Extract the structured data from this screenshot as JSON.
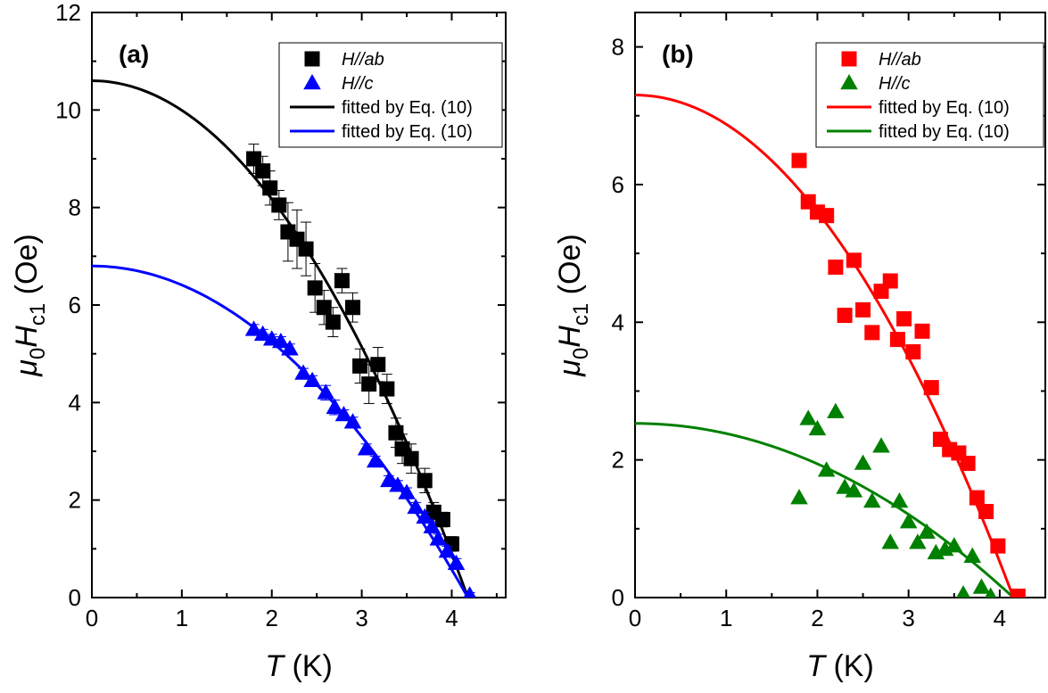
{
  "chart_data": [
    {
      "type": "scatter",
      "panel_label": "(a)",
      "xlabel": {
        "symbol": "T",
        "unit": "(K)"
      },
      "ylabel": {
        "mu": "μ",
        "mu_sub": "0",
        "h": "H",
        "h_sub": "c1",
        "unit": "(Oe)"
      },
      "xlim": [
        0,
        4.6
      ],
      "ylim": [
        0,
        12
      ],
      "xticks": [
        0,
        1,
        2,
        3,
        4
      ],
      "yticks": [
        0,
        2,
        4,
        6,
        8,
        10,
        12
      ],
      "legend_position": "top-right",
      "series": [
        {
          "name": "H//ab",
          "kind": "points",
          "marker": "square",
          "color": "#000000",
          "errorbars": true,
          "x": [
            1.8,
            1.9,
            1.98,
            2.08,
            2.18,
            2.28,
            2.38,
            2.48,
            2.58,
            2.68,
            2.78,
            2.9,
            2.98,
            3.08,
            3.18,
            3.28,
            3.38,
            3.45,
            3.55,
            3.7,
            3.8,
            3.9,
            4.0
          ],
          "y": [
            9.0,
            8.75,
            8.4,
            8.05,
            7.5,
            7.35,
            7.15,
            6.35,
            5.95,
            5.65,
            6.5,
            5.95,
            4.75,
            4.38,
            4.78,
            4.28,
            3.38,
            3.05,
            2.85,
            2.4,
            1.75,
            1.6,
            1.1
          ],
          "err": [
            0.3,
            0.3,
            0.35,
            0.3,
            0.6,
            0.6,
            0.55,
            0.5,
            0.35,
            0.3,
            0.25,
            0.3,
            0.35,
            0.4,
            0.35,
            0.3,
            0.3,
            0.3,
            0.3,
            0.25,
            0.2,
            0.15,
            0.15
          ]
        },
        {
          "name": "H//c",
          "kind": "points",
          "marker": "triangle",
          "color": "#0000ff",
          "errorbars": true,
          "x": [
            1.8,
            1.9,
            2.0,
            2.1,
            2.2,
            2.35,
            2.45,
            2.6,
            2.7,
            2.8,
            2.9,
            3.05,
            3.15,
            3.3,
            3.4,
            3.5,
            3.6,
            3.7,
            3.78,
            3.85,
            3.95,
            4.05,
            4.2
          ],
          "y": [
            5.5,
            5.4,
            5.3,
            5.25,
            5.1,
            4.6,
            4.45,
            4.2,
            3.9,
            3.75,
            3.6,
            3.05,
            2.8,
            2.4,
            2.3,
            2.15,
            1.85,
            1.65,
            1.45,
            1.2,
            0.95,
            0.7,
            0.05
          ],
          "err": [
            0.1,
            0.1,
            0.1,
            0.1,
            0.1,
            0.1,
            0.1,
            0.15,
            0.15,
            0.1,
            0.1,
            0.1,
            0.1,
            0.1,
            0.1,
            0.1,
            0.1,
            0.1,
            0.1,
            0.1,
            0.1,
            0.1,
            0.05
          ]
        },
        {
          "name": "fitted by Eq. (10)",
          "kind": "fit",
          "color": "#000000",
          "model": {
            "y0": 10.6,
            "tc": 4.18
          }
        },
        {
          "name": "fitted by Eq. (10)",
          "kind": "fit",
          "color": "#0000ff",
          "model": {
            "y0": 6.8,
            "tc": 4.18
          }
        }
      ]
    },
    {
      "type": "scatter",
      "panel_label": "(b)",
      "xlabel": {
        "symbol": "T",
        "unit": "(K)"
      },
      "ylabel": {
        "mu": "μ",
        "mu_sub": "0",
        "h": "H",
        "h_sub": "c1",
        "unit": "(Oe)"
      },
      "xlim": [
        0,
        4.5
      ],
      "ylim": [
        0,
        8.5
      ],
      "xticks": [
        0,
        1,
        2,
        3,
        4
      ],
      "yticks": [
        0,
        2,
        4,
        6,
        8
      ],
      "legend_position": "top-right",
      "series": [
        {
          "name": "H//ab",
          "kind": "points",
          "marker": "square",
          "color": "#ff0000",
          "errorbars": false,
          "x": [
            1.8,
            1.9,
            2.0,
            2.1,
            2.2,
            2.3,
            2.4,
            2.5,
            2.6,
            2.7,
            2.8,
            2.88,
            2.95,
            3.05,
            3.15,
            3.25,
            3.35,
            3.45,
            3.55,
            3.65,
            3.75,
            3.85,
            3.98,
            4.2
          ],
          "y": [
            6.35,
            5.75,
            5.6,
            5.55,
            4.8,
            4.1,
            4.9,
            4.18,
            3.85,
            4.45,
            4.6,
            3.75,
            4.05,
            3.57,
            3.87,
            3.05,
            2.3,
            2.15,
            2.1,
            1.95,
            1.45,
            1.25,
            0.75,
            0.02
          ],
          "err": []
        },
        {
          "name": "H//c",
          "kind": "points",
          "marker": "triangle",
          "color": "#008000",
          "errorbars": false,
          "x": [
            1.8,
            1.9,
            2.0,
            2.1,
            2.2,
            2.3,
            2.4,
            2.5,
            2.6,
            2.7,
            2.8,
            2.9,
            3.0,
            3.1,
            3.2,
            3.3,
            3.4,
            3.5,
            3.6,
            3.7,
            3.8,
            3.9
          ],
          "y": [
            1.45,
            2.6,
            2.45,
            1.85,
            2.7,
            1.6,
            1.55,
            1.95,
            1.4,
            2.2,
            0.8,
            1.4,
            1.1,
            0.8,
            0.95,
            0.65,
            0.7,
            0.75,
            0.05,
            0.6,
            0.15,
            0.02
          ],
          "err": []
        },
        {
          "name": "fitted by Eq. (10)",
          "kind": "fit",
          "color": "#ff0000",
          "model": {
            "y0": 7.3,
            "tc": 4.15
          }
        },
        {
          "name": "fitted by Eq. (10)",
          "kind": "fit",
          "color": "#008000",
          "model": {
            "y0": 2.53,
            "tc": 4.15
          }
        }
      ]
    }
  ]
}
